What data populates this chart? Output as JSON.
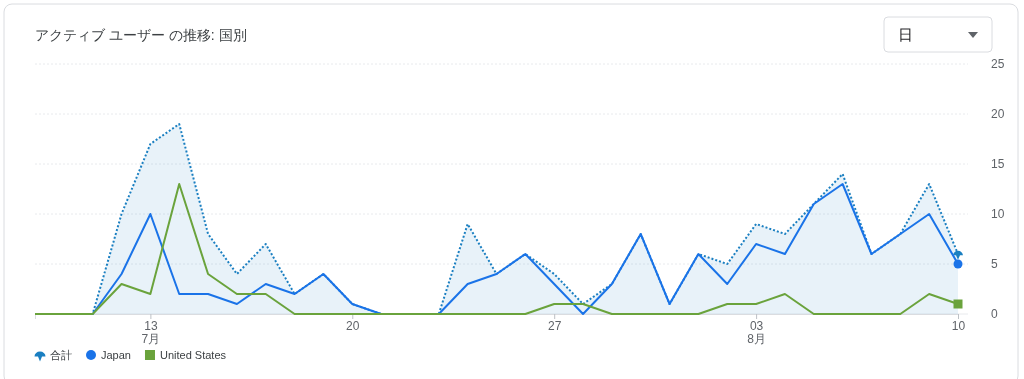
{
  "chart_data": {
    "type": "line",
    "title": "アクティブ ユーザー の推移: 国別",
    "annotations": [
      "日"
    ],
    "x": [
      "--07-09",
      "--07-10",
      "--07-11",
      "--07-12",
      "--07-13",
      "--07-14",
      "--07-15",
      "--07-16",
      "--07-17",
      "--07-18",
      "--07-19",
      "--07-20",
      "--07-21",
      "--07-22",
      "--07-23",
      "--07-24",
      "--07-25",
      "--07-26",
      "--07-27",
      "--07-28",
      "--07-29",
      "--07-30",
      "--07-31",
      "--08-01",
      "--08-02",
      "--08-03",
      "--08-04",
      "--08-05",
      "--08-06",
      "--08-07",
      "--08-08",
      "--08-09",
      "--08-10"
    ],
    "series": [
      {
        "name": "合計",
        "type": "area",
        "color": "#1a7fc1",
        "line_style": "dotted",
        "values": [
          0,
          0,
          0,
          10,
          17,
          19,
          8,
          4,
          7,
          2,
          4,
          1,
          0,
          0,
          0,
          9,
          4,
          6,
          4,
          1,
          3,
          8,
          1,
          6,
          5,
          9,
          8,
          11,
          14,
          6,
          8,
          13,
          6
        ]
      },
      {
        "name": "Japan",
        "color": "#1a73e8",
        "line_style": "solid",
        "values": [
          0,
          0,
          0,
          4,
          10,
          2,
          2,
          1,
          3,
          2,
          4,
          1,
          0,
          0,
          0,
          3,
          4,
          6,
          3,
          0,
          3,
          8,
          1,
          6,
          3,
          7,
          6,
          11,
          13,
          6,
          8,
          10,
          5
        ]
      },
      {
        "name": "United States",
        "color": "#6aa33c",
        "line_style": "solid",
        "values": [
          0,
          0,
          0,
          3,
          2,
          13,
          4,
          2,
          2,
          0,
          0,
          0,
          0,
          0,
          0,
          0,
          0,
          0,
          1,
          1,
          0,
          0,
          0,
          0,
          1,
          1,
          2,
          0,
          0,
          0,
          0,
          2,
          1
        ]
      }
    ],
    "xlim": [
      "--07-09",
      "--08-10"
    ],
    "xticks": [
      {
        "value": "--07-13",
        "label": "13\n7月"
      },
      {
        "value": "--07-20",
        "label": "20"
      },
      {
        "value": "--07-27",
        "label": "27"
      },
      {
        "value": "--08-03",
        "label": "03\n8月"
      },
      {
        "value": "--08-10",
        "label": "10"
      }
    ],
    "ylim": [
      0,
      25
    ],
    "yticks": [
      0,
      5,
      10,
      15,
      20,
      25
    ],
    "grid": "y",
    "legend": "bottom left"
  }
}
